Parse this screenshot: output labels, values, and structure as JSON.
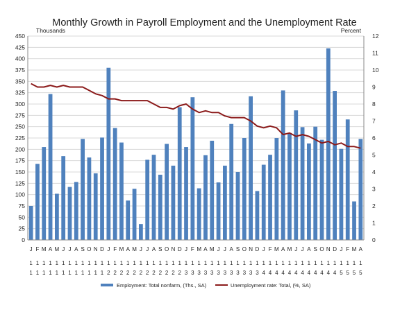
{
  "chart_data": {
    "type": "bar",
    "title": "Monthly Growth in Payroll Employment and the Unemployment Rate",
    "left_axis_unit": "Thousands",
    "right_axis_unit": "Percent",
    "ylim_left": [
      0,
      450
    ],
    "ylim_right": [
      0,
      12
    ],
    "left_ticks": [
      0,
      25,
      50,
      75,
      100,
      125,
      150,
      175,
      200,
      225,
      250,
      275,
      300,
      325,
      350,
      375,
      400,
      425,
      450
    ],
    "right_ticks": [
      0,
      1,
      2,
      3,
      4,
      5,
      6,
      7,
      8,
      9,
      10,
      11,
      12
    ],
    "grid": true,
    "legend_position": "bottom",
    "months": [
      "J",
      "F",
      "M",
      "A",
      "M",
      "J",
      "J",
      "A",
      "S",
      "O",
      "N",
      "D",
      "J",
      "F",
      "M",
      "A",
      "M",
      "J",
      "J",
      "A",
      "S",
      "O",
      "N",
      "D",
      "J",
      "F",
      "M",
      "A",
      "M",
      "J",
      "J",
      "A",
      "S",
      "O",
      "N",
      "D",
      "J",
      "F",
      "M",
      "A",
      "M",
      "J",
      "J",
      "A",
      "S",
      "O",
      "N",
      "D",
      "J",
      "F",
      "M",
      "A"
    ],
    "years_line1": [
      "1",
      "1",
      "1",
      "1",
      "1",
      "1",
      "1",
      "1",
      "1",
      "1",
      "1",
      "1",
      "1",
      "1",
      "1",
      "1",
      "1",
      "1",
      "1",
      "1",
      "1",
      "1",
      "1",
      "1",
      "1",
      "1",
      "1",
      "1",
      "1",
      "1",
      "1",
      "1",
      "1",
      "1",
      "1",
      "1",
      "1",
      "1",
      "1",
      "1",
      "1",
      "1",
      "1",
      "1",
      "1",
      "1",
      "1",
      "1",
      "1",
      "1",
      "1",
      "1"
    ],
    "years_line2": [
      "1",
      "1",
      "1",
      "1",
      "1",
      "1",
      "1",
      "1",
      "1",
      "1",
      "1",
      "1",
      "2",
      "2",
      "2",
      "2",
      "2",
      "2",
      "2",
      "2",
      "2",
      "2",
      "2",
      "2",
      "3",
      "3",
      "3",
      "3",
      "3",
      "3",
      "3",
      "3",
      "3",
      "3",
      "3",
      "3",
      "4",
      "4",
      "4",
      "4",
      "4",
      "4",
      "4",
      "4",
      "4",
      "4",
      "4",
      "4",
      "5",
      "5",
      "5",
      "5"
    ],
    "series": [
      {
        "name": "Employment: Total nonfarm, (Ths., SA)",
        "type": "bar",
        "axis": "left",
        "color": "#4f81bd",
        "values": [
          75,
          168,
          205,
          322,
          102,
          185,
          117,
          128,
          223,
          182,
          147,
          226,
          380,
          247,
          215,
          87,
          113,
          35,
          177,
          188,
          144,
          212,
          164,
          293,
          205,
          315,
          114,
          187,
          219,
          127,
          164,
          256,
          150,
          225,
          317,
          108,
          166,
          188,
          225,
          330,
          236,
          286,
          249,
          213,
          250,
          221,
          423,
          329,
          201,
          266,
          85,
          223
        ]
      },
      {
        "name": "Unemployment rate: Total, (%, SA)",
        "type": "line",
        "axis": "right",
        "color": "#8b1a1a",
        "values": [
          9.2,
          9.0,
          9.0,
          9.1,
          9.0,
          9.1,
          9.0,
          9.0,
          9.0,
          8.8,
          8.6,
          8.5,
          8.3,
          8.3,
          8.2,
          8.2,
          8.2,
          8.2,
          8.2,
          8.0,
          7.8,
          7.8,
          7.7,
          7.9,
          8.0,
          7.7,
          7.5,
          7.6,
          7.5,
          7.5,
          7.3,
          7.2,
          7.2,
          7.2,
          7.0,
          6.7,
          6.6,
          6.7,
          6.6,
          6.2,
          6.3,
          6.1,
          6.2,
          6.1,
          5.9,
          5.7,
          5.8,
          5.6,
          5.7,
          5.5,
          5.5,
          5.4
        ]
      }
    ]
  }
}
